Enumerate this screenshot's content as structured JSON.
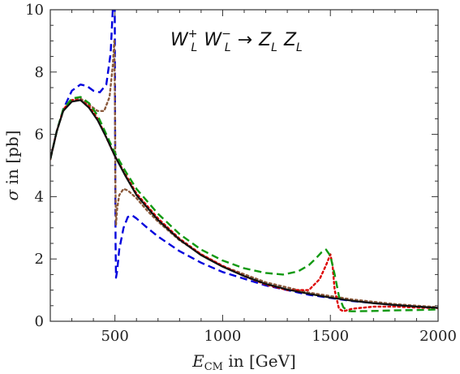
{
  "chart_data": {
    "type": "line",
    "title": {
      "main_1": "W",
      "sub_1": "L",
      "sup_1": "+",
      "main_2": "W",
      "sub_2": "L",
      "sup_2": "−",
      "arrow": "→",
      "main_3": "Z",
      "sub_3": "L",
      "main_4": "Z",
      "sub_4": "L"
    },
    "xlabel": {
      "symbol": "E",
      "sub": "CM",
      "rest": " in [GeV]"
    },
    "ylabel": {
      "symbol": "σ",
      "rest": " in [pb]"
    },
    "xlim": [
      200,
      2000
    ],
    "ylim": [
      0,
      10
    ],
    "xticks": [
      500,
      1000,
      1500,
      2000
    ],
    "yticks": [
      0,
      2,
      4,
      6,
      8,
      10
    ],
    "grid": false,
    "series": [
      {
        "color": "#0000dd",
        "style": "dashed",
        "x": [
          200,
          230,
          260,
          300,
          340,
          370,
          400,
          430,
          460,
          480,
          490,
          496,
          499,
          501,
          503,
          505,
          510,
          520,
          540,
          560,
          580,
          600,
          650,
          700,
          800,
          900,
          1000,
          1200,
          1400,
          1600,
          1800,
          2000
        ],
        "y": [
          5.2,
          6.1,
          6.8,
          7.4,
          7.6,
          7.55,
          7.4,
          7.35,
          7.6,
          8.6,
          10.0,
          10.5,
          10.5,
          6.0,
          2.5,
          1.4,
          1.6,
          2.3,
          3.0,
          3.35,
          3.4,
          3.3,
          3.0,
          2.72,
          2.25,
          1.88,
          1.58,
          1.15,
          0.85,
          0.65,
          0.52,
          0.43
        ]
      },
      {
        "color": "#8b5a3c",
        "style": "dotted",
        "x": [
          200,
          230,
          260,
          300,
          340,
          380,
          420,
          450,
          475,
          490,
          497,
          500,
          502,
          505,
          510,
          520,
          540,
          560,
          600,
          650,
          700,
          800,
          900,
          1000,
          1200,
          1400,
          1600,
          1800,
          2000
        ],
        "y": [
          5.2,
          6.1,
          6.75,
          7.1,
          7.15,
          6.95,
          6.75,
          6.75,
          7.2,
          8.2,
          9.0,
          7.0,
          4.5,
          3.1,
          3.6,
          4.05,
          4.25,
          4.2,
          3.95,
          3.55,
          3.2,
          2.6,
          2.15,
          1.77,
          1.25,
          0.92,
          0.7,
          0.55,
          0.45
        ]
      },
      {
        "color": "#dd0000",
        "style": "dotted",
        "x": [
          200,
          230,
          260,
          300,
          340,
          380,
          420,
          460,
          500,
          550,
          600,
          700,
          800,
          900,
          1000,
          1100,
          1200,
          1300,
          1400,
          1450,
          1480,
          1500,
          1510,
          1520,
          1540,
          1560,
          1600,
          1700,
          1800,
          1900,
          2000
        ],
        "y": [
          5.2,
          6.1,
          6.8,
          7.1,
          7.1,
          6.9,
          6.5,
          5.9,
          5.3,
          4.7,
          4.1,
          3.3,
          2.65,
          2.15,
          1.78,
          1.45,
          1.18,
          1.0,
          1.0,
          1.35,
          1.8,
          2.15,
          1.8,
          1.0,
          0.4,
          0.32,
          0.4,
          0.47,
          0.47,
          0.44,
          0.42
        ]
      },
      {
        "color": "#119911",
        "style": "dashed",
        "x": [
          200,
          230,
          260,
          300,
          340,
          380,
          420,
          460,
          500,
          550,
          600,
          700,
          800,
          900,
          1000,
          1100,
          1200,
          1280,
          1350,
          1400,
          1430,
          1460,
          1480,
          1500,
          1520,
          1540,
          1560,
          1580,
          1600,
          1700,
          1800,
          1900,
          2000
        ],
        "y": [
          5.2,
          6.1,
          6.8,
          7.15,
          7.2,
          7.0,
          6.6,
          6.0,
          5.4,
          4.8,
          4.25,
          3.45,
          2.8,
          2.3,
          1.95,
          1.7,
          1.55,
          1.5,
          1.6,
          1.8,
          2.0,
          2.22,
          2.3,
          2.1,
          1.5,
          0.8,
          0.45,
          0.33,
          0.32,
          0.33,
          0.35,
          0.36,
          0.38
        ]
      },
      {
        "color": "#111111",
        "style": "solid",
        "x": [
          200,
          230,
          260,
          300,
          340,
          380,
          420,
          460,
          500,
          550,
          600,
          700,
          800,
          900,
          1000,
          1100,
          1200,
          1300,
          1400,
          1500,
          1600,
          1700,
          1800,
          1900,
          2000
        ],
        "y": [
          5.2,
          6.1,
          6.75,
          7.05,
          7.1,
          6.85,
          6.45,
          5.9,
          5.3,
          4.65,
          4.05,
          3.25,
          2.62,
          2.12,
          1.75,
          1.45,
          1.2,
          1.02,
          0.88,
          0.76,
          0.66,
          0.58,
          0.52,
          0.47,
          0.43
        ]
      }
    ]
  }
}
